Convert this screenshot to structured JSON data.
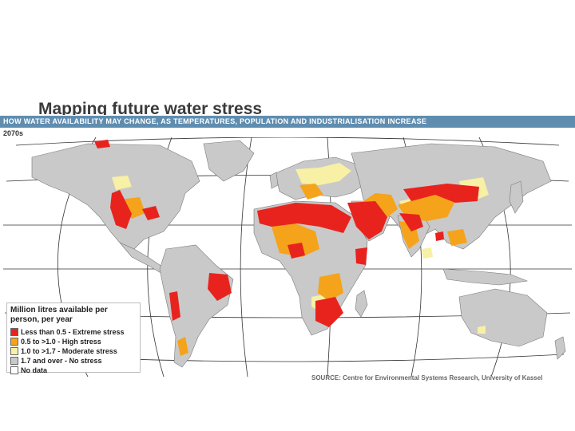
{
  "header": {
    "title": "Mapping future water stress",
    "subtitle": "HOW WATER AVAILABILITY MAY CHANGE, AS TEMPERATURES, POPULATION AND INDUSTRIALISATION INCREASE",
    "period": "2070s"
  },
  "legend": {
    "title": "Million litres available per person, per year",
    "items": [
      {
        "label": "Less than 0.5 - Extreme stress",
        "color": "#e8231e"
      },
      {
        "label": "0.5 to >1.0 - High stress",
        "color": "#f5a31a"
      },
      {
        "label": "1.0 to >1.7 - Moderate stress",
        "color": "#f7f0a5"
      },
      {
        "label": "1.7 and over - No stress",
        "color": "#c9c9c9"
      },
      {
        "label": "No data",
        "color": "#ffffff"
      }
    ]
  },
  "source": "SOURCE: Centre for Environmental Systems Research, University of Kassel",
  "colors": {
    "banner": "#5f8db0",
    "land": "#c9c9c9",
    "ocean": "#ffffff",
    "extreme": "#e8231e",
    "high": "#f5a31a",
    "moderate": "#f7f0a5"
  }
}
